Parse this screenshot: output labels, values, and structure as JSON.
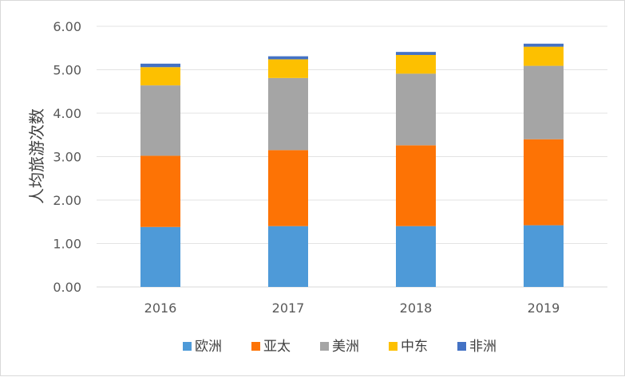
{
  "chart_data": {
    "type": "bar",
    "stacked": true,
    "title": "",
    "xlabel": "",
    "ylabel": "人均旅游次数",
    "ylim": [
      0,
      6
    ],
    "yticks": [
      "0.00",
      "1.00",
      "2.00",
      "3.00",
      "4.00",
      "5.00",
      "6.00"
    ],
    "grid": true,
    "legend_position": "bottom",
    "categories": [
      "2016",
      "2017",
      "2018",
      "2019"
    ],
    "series": [
      {
        "name": "欧洲",
        "color": "#4e9ad8",
        "values": [
          1.38,
          1.4,
          1.4,
          1.42
        ]
      },
      {
        "name": "亚太",
        "color": "#fd7305",
        "values": [
          1.64,
          1.75,
          1.86,
          1.98
        ]
      },
      {
        "name": "美洲",
        "color": "#a5a5a5",
        "values": [
          1.62,
          1.66,
          1.65,
          1.69
        ]
      },
      {
        "name": "中东",
        "color": "#fdc000",
        "values": [
          0.42,
          0.43,
          0.43,
          0.44
        ]
      },
      {
        "name": "非洲",
        "color": "#4472c4",
        "values": [
          0.08,
          0.07,
          0.07,
          0.07
        ]
      }
    ]
  }
}
